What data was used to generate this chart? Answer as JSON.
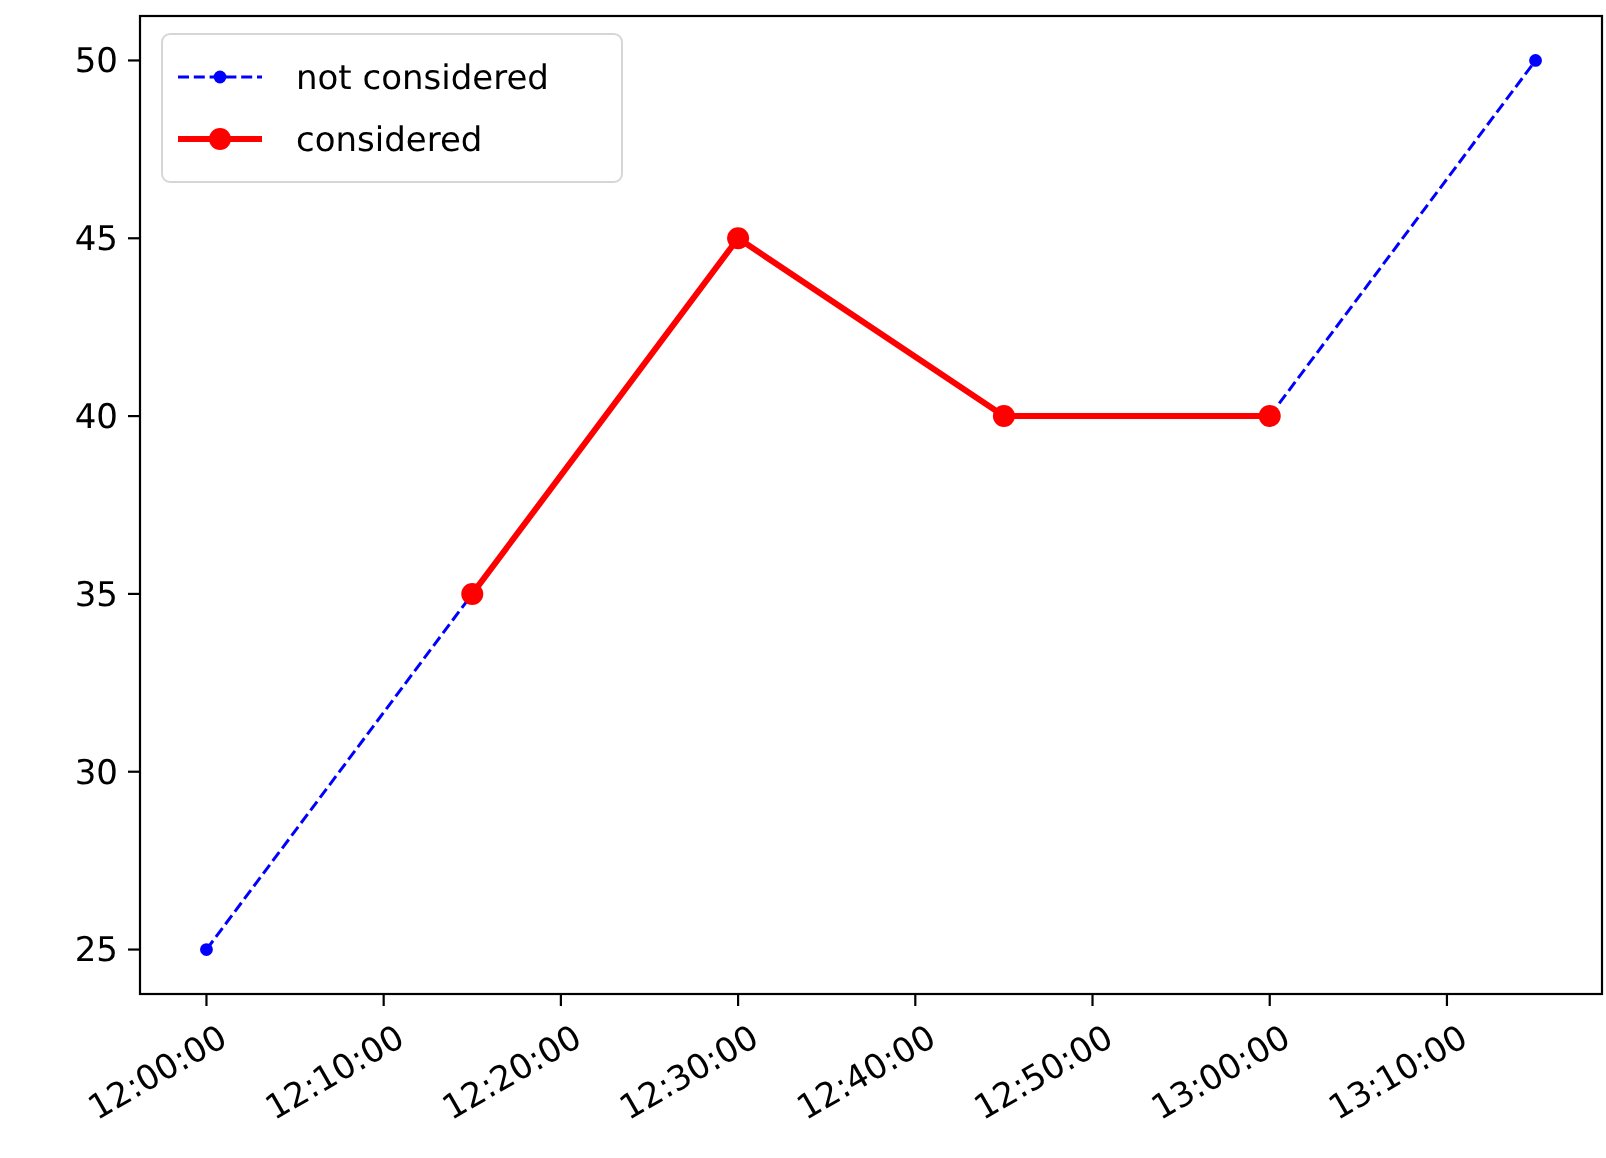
{
  "chart_data": {
    "type": "line",
    "x": [
      12,
      12.25,
      12.5,
      12.75,
      13,
      13.25
    ],
    "series": [
      {
        "name": "not considered",
        "color": "#0000ff",
        "values": [
          25,
          35,
          null,
          null,
          40,
          50
        ],
        "line_style": "dashed",
        "marker": "circle"
      },
      {
        "name": "considered",
        "color": "#ff0000",
        "values": [
          null,
          35,
          45,
          40,
          40,
          null
        ],
        "line_style": "solid",
        "marker": "circle"
      }
    ],
    "xlim": [
      11.9375,
      13.3125
    ],
    "xticks": [
      {
        "value": 12,
        "label": "12:00:00"
      },
      {
        "value": 12.166667,
        "label": "12:10:00"
      },
      {
        "value": 12.333333,
        "label": "12:20:00"
      },
      {
        "value": 12.5,
        "label": "12:30:00"
      },
      {
        "value": 12.666667,
        "label": "12:40:00"
      },
      {
        "value": 12.833333,
        "label": "12:50:00"
      },
      {
        "value": 13,
        "label": "13:00:00"
      },
      {
        "value": 13.166667,
        "label": "13:10:00"
      }
    ],
    "ylim": [
      23.75,
      51.25
    ],
    "yticks": [
      25,
      30,
      35,
      40,
      45,
      50
    ],
    "grid": false,
    "legend": "top left"
  }
}
